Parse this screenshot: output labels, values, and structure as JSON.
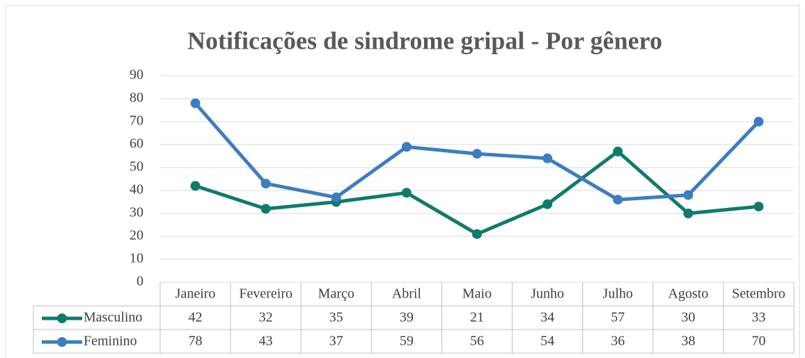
{
  "chart_data": {
    "type": "line",
    "title": "Notificações de sindrome gripal - Por gênero",
    "categories": [
      "Janeiro",
      "Fevereiro",
      "Março",
      "Abril",
      "Maio",
      "Junho",
      "Julho",
      "Agosto",
      "Setembro"
    ],
    "series": [
      {
        "name": "Masculino",
        "color": "#0f7b6c",
        "values": [
          42,
          32,
          35,
          39,
          21,
          34,
          57,
          30,
          33
        ]
      },
      {
        "name": "Feminino",
        "color": "#3b7dc0",
        "values": [
          78,
          43,
          37,
          59,
          56,
          54,
          36,
          38,
          70
        ]
      }
    ],
    "ylim": [
      0,
      90
    ],
    "yticks": [
      0,
      10,
      20,
      30,
      40,
      50,
      60,
      70,
      80,
      90
    ],
    "grid": true
  }
}
